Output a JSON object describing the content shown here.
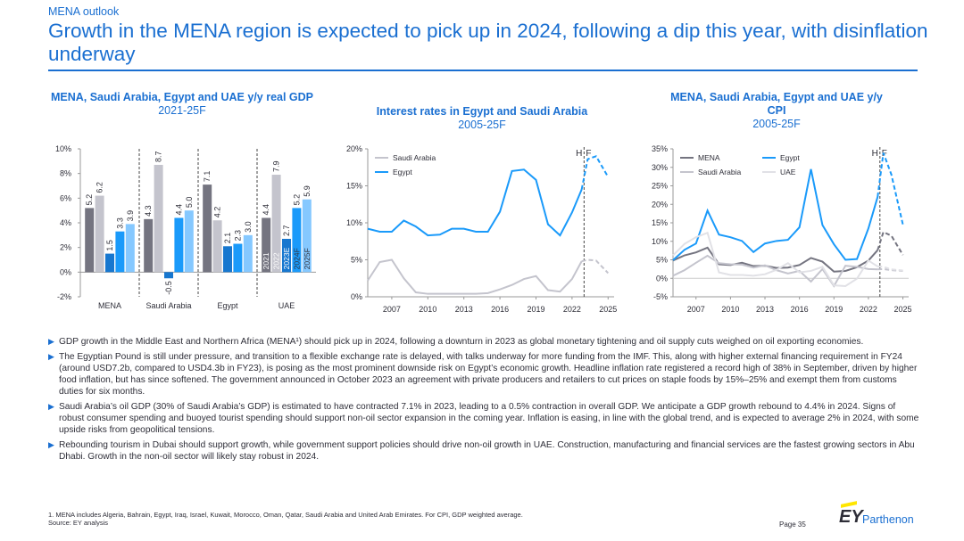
{
  "header": {
    "section": "MENA outlook",
    "title": "Growth in the MENA region is expected to pick up in 2024, following a dip this year, with disinflation underway"
  },
  "colors": {
    "accent": "#1a6fd1",
    "gdp_2021": "#747480",
    "gdp_2022": "#c4c4cd",
    "gdp_2023E": "#1777cf",
    "gdp_2024F": "#1a9afa",
    "gdp_2025F": "#85c8ff",
    "mena": "#747480",
    "saudi": "#c4c4cd",
    "egypt": "#1a9afa",
    "uae": "#e1e1e6"
  },
  "chart_data": [
    {
      "type": "bar",
      "title": "MENA, Saudi Arabia, Egypt and UAE y/y real GDP",
      "subtitle": "2021-25F",
      "categories": [
        "MENA",
        "Saudi Arabia",
        "Egypt",
        "UAE"
      ],
      "series": [
        {
          "name": "2021",
          "values": [
            5.2,
            4.3,
            7.1,
            4.4
          ]
        },
        {
          "name": "2022",
          "values": [
            6.2,
            8.7,
            4.2,
            7.9
          ]
        },
        {
          "name": "2023E",
          "values": [
            1.5,
            -0.5,
            2.1,
            2.7
          ]
        },
        {
          "name": "2024F",
          "values": [
            3.3,
            4.4,
            2.3,
            5.2
          ]
        },
        {
          "name": "2025F",
          "values": [
            3.9,
            5.0,
            3.0,
            5.9
          ]
        }
      ],
      "value_labels": [
        [
          "5.2",
          "6.2",
          "1.5",
          "3.3",
          "3.9"
        ],
        [
          "4.3",
          "8.7",
          "-0.5",
          "4.4",
          "5.0"
        ],
        [
          "7.1",
          "4.2",
          "2.1",
          "2.3",
          "3.0"
        ],
        [
          "4.4",
          "7.9",
          "2.7",
          "5.2",
          "5.9"
        ]
      ],
      "ylim": [
        -2,
        10
      ],
      "yticks": [
        "10%",
        "8%",
        "6%",
        "4%",
        "2%",
        "0%",
        "-2%"
      ],
      "ytick_values": [
        10,
        8,
        6,
        4,
        2,
        0,
        -2
      ],
      "grid": false
    },
    {
      "type": "line",
      "title": "Interest rates in Egypt and Saudi Arabia",
      "subtitle": "2005-25F",
      "xlim": [
        2005,
        2025.5
      ],
      "ylim": [
        0,
        20
      ],
      "xticks": [
        2007,
        2010,
        2013,
        2016,
        2019,
        2022,
        2025
      ],
      "xtick_labels": [
        "2007",
        "2010",
        "2013",
        "2016",
        "2019",
        "2022",
        "2025"
      ],
      "yticks": [
        "20%",
        "15%",
        "10%",
        "5%",
        "0%"
      ],
      "ytick_values": [
        20,
        15,
        10,
        5,
        0
      ],
      "forecast_marker": {
        "x": 2023,
        "labels": [
          "H",
          "F"
        ]
      },
      "legend": "top-left",
      "series": [
        {
          "name": "Saudi Arabia",
          "color": "#c4c4cd",
          "x": [
            2005,
            2006,
            2007,
            2008,
            2009,
            2010,
            2011,
            2012,
            2013,
            2014,
            2015,
            2016,
            2017,
            2018,
            2019,
            2020,
            2021,
            2022,
            2022.8
          ],
          "y": [
            2.2,
            4.7,
            5.0,
            2.5,
            0.6,
            0.4,
            0.4,
            0.4,
            0.4,
            0.4,
            0.5,
            1.0,
            1.6,
            2.4,
            2.8,
            0.9,
            0.7,
            2.4,
            4.8
          ],
          "forecast": {
            "x": [
              2022.8,
              2023.3,
              2024,
              2025
            ],
            "y": [
              4.8,
              5.0,
              4.9,
              3.2
            ]
          }
        },
        {
          "name": "Egypt",
          "color": "#1a9afa",
          "x": [
            2005,
            2006,
            2007,
            2008,
            2009,
            2010,
            2011,
            2012,
            2013,
            2014,
            2015,
            2016,
            2017,
            2018,
            2019,
            2020,
            2021,
            2022,
            2022.8
          ],
          "y": [
            9.2,
            8.8,
            8.8,
            10.3,
            9.5,
            8.3,
            8.4,
            9.2,
            9.2,
            8.8,
            8.8,
            11.5,
            17.0,
            17.2,
            15.8,
            9.8,
            8.3,
            11.4,
            14.5
          ],
          "forecast": {
            "x": [
              2022.8,
              2023.3,
              2024,
              2025
            ],
            "y": [
              14.5,
              18.6,
              19.0,
              16.2
            ]
          }
        }
      ]
    },
    {
      "type": "line",
      "title": "MENA, Saudi Arabia, Egypt and UAE y/y CPI",
      "subtitle": "2005-25F",
      "xlim": [
        2005,
        2025.5
      ],
      "ylim": [
        -5,
        35
      ],
      "xticks": [
        2007,
        2010,
        2013,
        2016,
        2019,
        2022,
        2025
      ],
      "xtick_labels": [
        "2007",
        "2010",
        "2013",
        "2016",
        "2019",
        "2022",
        "2025"
      ],
      "yticks": [
        "35%",
        "30%",
        "25%",
        "20%",
        "15%",
        "10%",
        "5%",
        "0%",
        "-5%"
      ],
      "ytick_values": [
        35,
        30,
        25,
        20,
        15,
        10,
        5,
        0,
        -5
      ],
      "forecast_marker": {
        "x": 2023,
        "labels": [
          "H",
          "F"
        ]
      },
      "legend": "top-left",
      "series": [
        {
          "name": "MENA",
          "color": "#747480",
          "x": [
            2005,
            2006,
            2007,
            2008,
            2009,
            2010,
            2011,
            2012,
            2013,
            2014,
            2015,
            2016,
            2017,
            2018,
            2019,
            2020,
            2021,
            2022,
            2022.8
          ],
          "y": [
            4.8,
            6.2,
            7.0,
            8.3,
            3.8,
            3.6,
            4.2,
            3.3,
            3.4,
            2.8,
            2.9,
            3.6,
            5.5,
            4.5,
            1.8,
            2.0,
            3.0,
            4.8,
            7.6
          ],
          "forecast": {
            "x": [
              2022.8,
              2023.3,
              2024,
              2025
            ],
            "y": [
              7.6,
              12.5,
              11.5,
              6.3
            ]
          }
        },
        {
          "name": "Egypt",
          "color": "#1a9afa",
          "x": [
            2005,
            2006,
            2007,
            2008,
            2009,
            2010,
            2011,
            2012,
            2013,
            2014,
            2015,
            2016,
            2017,
            2018,
            2019,
            2020,
            2021,
            2022,
            2022.8
          ],
          "y": [
            4.9,
            7.7,
            9.4,
            18.3,
            11.8,
            11.1,
            10.1,
            7.1,
            9.4,
            10.1,
            10.4,
            13.8,
            29.5,
            14.4,
            9.2,
            5.0,
            5.2,
            13.5,
            22.0
          ],
          "forecast": {
            "x": [
              2022.8,
              2023.3,
              2024,
              2025
            ],
            "y": [
              22.0,
              33.9,
              28.0,
              14.5
            ]
          }
        },
        {
          "name": "Saudi Arabia",
          "color": "#c4c4cd",
          "x": [
            2005,
            2006,
            2007,
            2008,
            2009,
            2010,
            2011,
            2012,
            2013,
            2014,
            2015,
            2016,
            2017,
            2018,
            2019,
            2020,
            2021,
            2022,
            2022.8
          ],
          "y": [
            0.7,
            2.2,
            4.2,
            6.1,
            4.1,
            3.8,
            3.7,
            2.9,
            3.5,
            2.2,
            1.3,
            2.0,
            -0.9,
            2.5,
            -2.1,
            3.4,
            3.1,
            2.5,
            2.4
          ],
          "forecast": {
            "x": [
              2022.8,
              2023.3,
              2024,
              2025
            ],
            "y": [
              2.4,
              2.5,
              2.2,
              2.0
            ]
          }
        },
        {
          "name": "UAE",
          "color": "#e1e1e6",
          "x": [
            2005,
            2006,
            2007,
            2008,
            2009,
            2010,
            2011,
            2012,
            2013,
            2014,
            2015,
            2016,
            2017,
            2018,
            2019,
            2020,
            2021,
            2022,
            2022.8
          ],
          "y": [
            6.2,
            9.3,
            11.1,
            12.3,
            1.6,
            0.9,
            0.9,
            0.7,
            1.1,
            2.3,
            4.1,
            1.6,
            2.0,
            3.1,
            -1.9,
            -2.1,
            -0.1,
            4.8,
            3.2
          ],
          "forecast": {
            "x": [
              2022.8,
              2023.3,
              2024,
              2025
            ],
            "y": [
              3.2,
              3.1,
              2.4,
              2.1
            ]
          }
        }
      ]
    }
  ],
  "bullets": [
    "GDP growth in the Middle East and Northern Africa (MENA¹) should pick up in 2024, following a downturn in 2023 as global monetary tightening and oil supply cuts weighed on oil exporting economies.",
    "The Egyptian Pound is still under pressure, and transition to a flexible exchange rate is delayed, with talks underway for more funding from the IMF. This, along with higher external financing requirement in FY24 (around USD7.2b, compared to USD4.3b in FY23), is posing as the most prominent downside risk on Egypt’s economic growth. Headline inflation rate registered a record high of 38% in September, driven by higher food inflation, but has since softened. The government announced in October 2023 an agreement with private producers and retailers to cut prices on staple foods by 15%–25% and exempt them from customs duties for six months.",
    "Saudi Arabia’s oil GDP (30% of Saudi Arabia’s GDP) is estimated to have contracted 7.1% in 2023, leading to a 0.5% contraction in overall GDP. We anticipate a GDP growth rebound to 4.4% in 2024. Signs of robust consumer spending and buoyed tourist spending should support non-oil sector expansion in the coming year. Inflation is easing, in line with the global trend, and is expected to average 2% in 2024, with some upside risks from geopolitical tensions.",
    "Rebounding tourism in Dubai should support growth, while government support policies should drive non-oil growth in UAE. Construction, manufacturing and financial services are the fastest growing sectors in Abu Dhabi. Growth in the non-oil sector will likely stay robust in 2024."
  ],
  "footnote": {
    "note": "1.    MENA includes Algeria, Bahrain, Egypt, Iraq, Israel, Kuwait, Morocco, Oman, Qatar, Saudi Arabia and United Arab Emirates. For CPI, GDP weighted average.",
    "source": "Source: EY analysis"
  },
  "page": "Page 35",
  "logo": {
    "mark": "EY",
    "name": "Parthenon"
  }
}
